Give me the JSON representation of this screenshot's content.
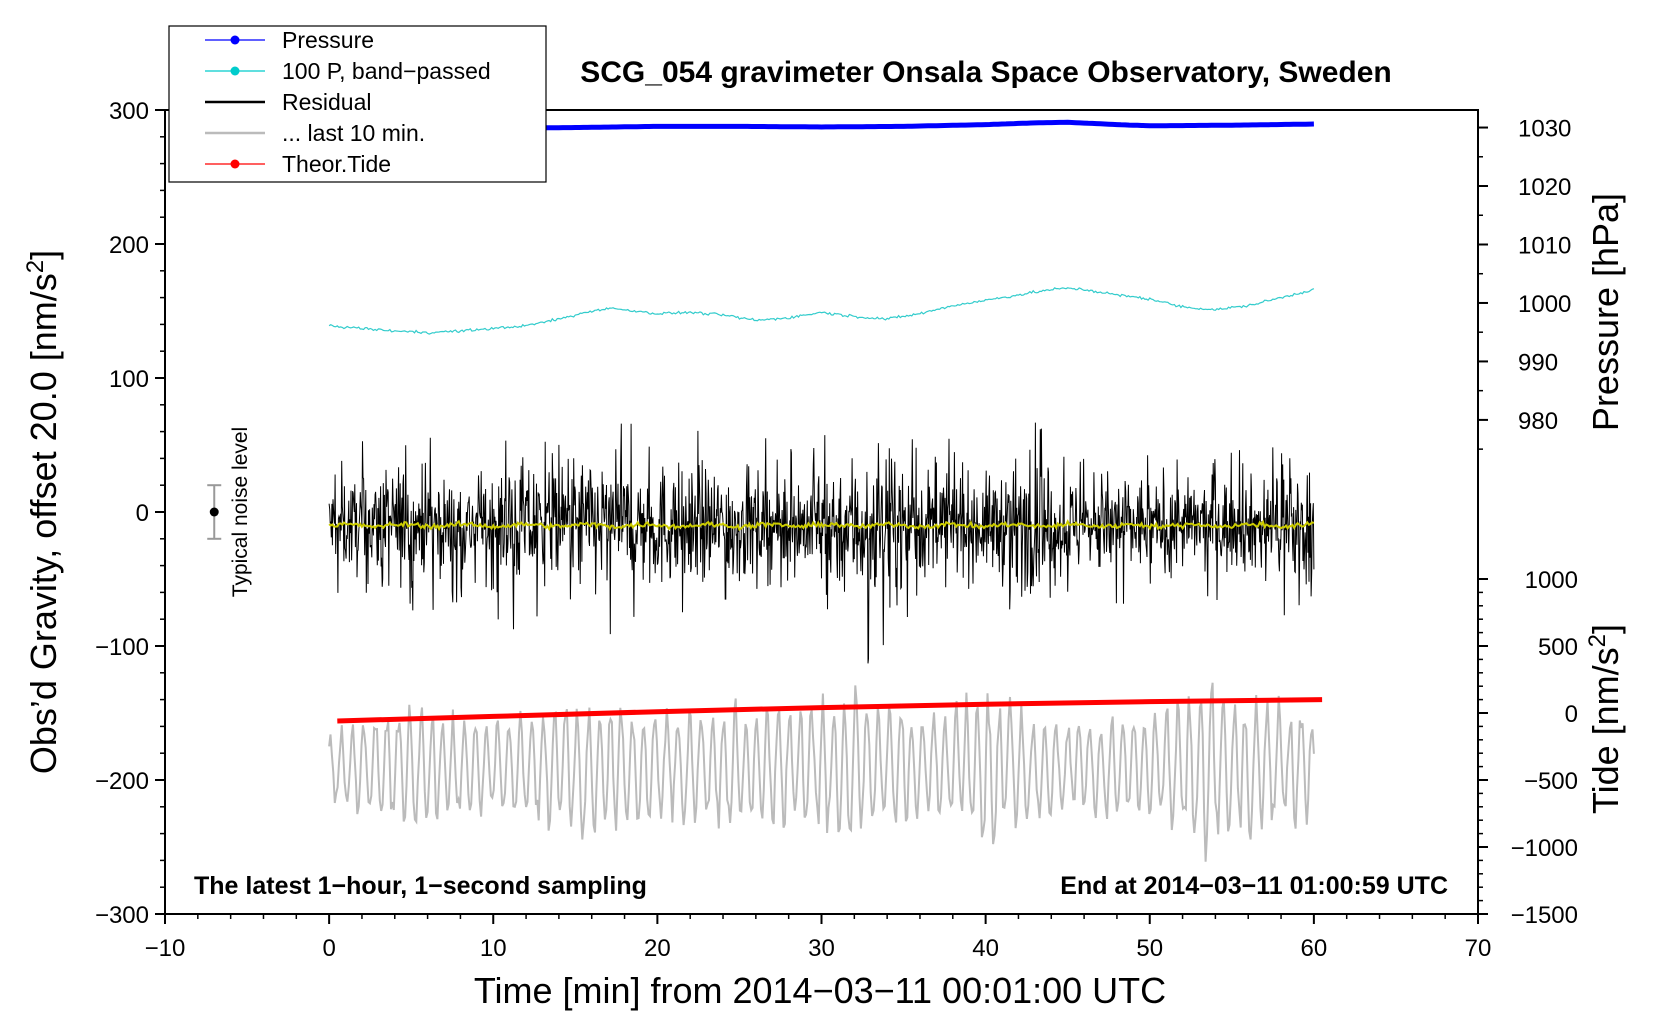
{
  "chart_data": {
    "type": "line",
    "title": "SCG_054 gravimeter Onsala Space Observatory, Sweden",
    "xlabel": "Time [min] from 2014−03−11 00:01:00 UTC",
    "ylabel_main": "Obs’d Gravity, offset 20.0 [nm/s",
    "ylabel_main_sup": "2",
    "ylabel_main_end": "]",
    "ylabel_pressure": "Pressure [hPa]",
    "ylabel_tide": "Tide [nm/s",
    "ylabel_tide_sup": "2",
    "ylabel_tide_end": "]",
    "xlim": [
      -10,
      70
    ],
    "ylim": [
      -300,
      300
    ],
    "x_ticks": [
      -10,
      0,
      10,
      20,
      30,
      40,
      50,
      60,
      70
    ],
    "x_tick_labels": [
      "−10",
      "0",
      "10",
      "20",
      "30",
      "40",
      "50",
      "60",
      "70"
    ],
    "y_ticks": [
      -300,
      -200,
      -100,
      0,
      100,
      200,
      300
    ],
    "y_tick_labels": [
      "−300",
      "−200",
      "−100",
      "0",
      "100",
      "200",
      "300"
    ],
    "pressure_axis": {
      "ticks": [
        980,
        990,
        1000,
        1010,
        1020,
        1030
      ],
      "tick_labels": [
        "980",
        "990",
        "1000",
        "1010",
        "1020",
        "1030"
      ],
      "range_top": 1033,
      "range_bottom": 972.5,
      "top_main_value": 300,
      "bottom_main_value": 36
    },
    "tide_axis": {
      "ticks": [
        -1500,
        -1000,
        -500,
        0,
        500,
        1000
      ],
      "tick_labels": [
        "−1500",
        "−1000",
        "−500",
        "0",
        "500",
        "1000"
      ],
      "range_top": 1000,
      "range_bottom": -1500,
      "top_main_value": -50,
      "bottom_main_value": -300
    },
    "legend": {
      "position": "top-left",
      "entries": [
        {
          "label": "Pressure",
          "color": "#0000ff",
          "marker": true
        },
        {
          "label": "100 P, band−passed",
          "color": "#00cccc",
          "marker": true
        },
        {
          "label": "Residual",
          "color": "#000000",
          "marker": false
        },
        {
          "label": "... last 10 min.",
          "color": "#bbbbbb",
          "marker": false
        },
        {
          "label": "Theor.Tide",
          "color": "#ff0000",
          "marker": true
        }
      ]
    },
    "annotations": {
      "left_bottom": "The latest 1−hour, 1−second sampling",
      "right_bottom": "End at 2014−03−11 01:00:59 UTC",
      "noise_label": "Typical noise level"
    },
    "noise_bar": {
      "x": -7,
      "center": 0,
      "half_range": 20
    },
    "series": [
      {
        "name": "Pressure",
        "axis": "pressure",
        "color": "#0000ff",
        "x": [
          0,
          5,
          10,
          15,
          20,
          25,
          30,
          35,
          40,
          43,
          45,
          48,
          50,
          55,
          60
        ],
        "values": [
          1030.1,
          1030.0,
          1029.9,
          1030.0,
          1030.2,
          1030.2,
          1030.1,
          1030.2,
          1030.5,
          1030.8,
          1030.9,
          1030.5,
          1030.3,
          1030.4,
          1030.6
        ]
      },
      {
        "name": "100 P, band−passed",
        "axis": "main",
        "color": "#33cccc",
        "x": [
          0,
          2,
          4,
          6,
          8,
          10,
          12,
          14,
          16,
          17,
          18,
          20,
          22,
          24,
          26,
          28,
          30,
          32,
          34,
          36,
          38,
          40,
          42,
          44,
          45,
          46,
          48,
          50,
          52,
          54,
          56,
          58,
          60
        ],
        "values": [
          139,
          137,
          135,
          134,
          135,
          137,
          139,
          144,
          150,
          152,
          151,
          148,
          149,
          147,
          143,
          145,
          149,
          146,
          144,
          148,
          154,
          158,
          162,
          166,
          167,
          166,
          162,
          159,
          153,
          151,
          154,
          160,
          166
        ]
      },
      {
        "name": "Residual",
        "axis": "main",
        "color": "#000000",
        "x_range": [
          0,
          60
        ],
        "mean": -10,
        "envelope_x": [
          0,
          2,
          4,
          5,
          8,
          10,
          12,
          13,
          14,
          15,
          16,
          18,
          20,
          22,
          24,
          26,
          28,
          30,
          31,
          33,
          34,
          36,
          38,
          40,
          42,
          44,
          46,
          48,
          50,
          52,
          54,
          56,
          58,
          59.5,
          60
        ],
        "envelope_amp": [
          38,
          42,
          55,
          48,
          38,
          45,
          58,
          50,
          45,
          60,
          62,
          50,
          55,
          48,
          55,
          45,
          40,
          50,
          55,
          70,
          60,
          48,
          45,
          42,
          55,
          48,
          40,
          45,
          40,
          38,
          42,
          40,
          45,
          55,
          40
        ]
      },
      {
        "name": "... last 10 min.",
        "axis": "main",
        "color": "#bbbbbb",
        "x_range": [
          0,
          60
        ],
        "mean": -190,
        "envelope_x": [
          0,
          3,
          5,
          8,
          10,
          12,
          15,
          18,
          20,
          22,
          25,
          28,
          30,
          32,
          33,
          35,
          38,
          39,
          40,
          42,
          45,
          48,
          50,
          52,
          53,
          55,
          58,
          60
        ],
        "envelope_amp": [
          30,
          45,
          50,
          40,
          38,
          45,
          55,
          50,
          42,
          45,
          50,
          48,
          55,
          60,
          50,
          48,
          45,
          55,
          65,
          45,
          35,
          40,
          45,
          55,
          80,
          60,
          50,
          40
        ]
      },
      {
        "name": "Theor.Tide",
        "axis": "tide",
        "color": "#ff0000",
        "x": [
          0.5,
          10,
          20,
          30,
          40,
          50,
          60.5
        ],
        "values": [
          -60,
          -25,
          10,
          40,
          65,
          85,
          100
        ]
      }
    ]
  }
}
